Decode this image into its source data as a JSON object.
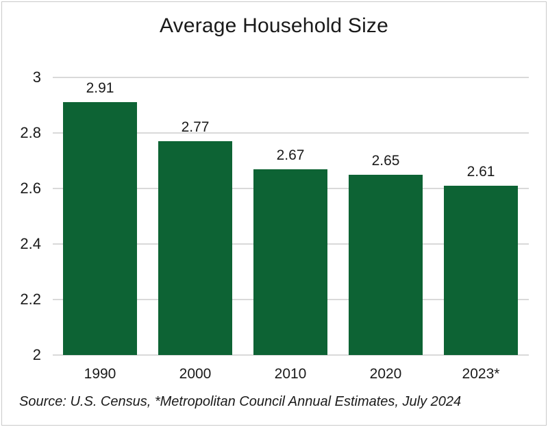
{
  "page": {
    "background_color": "#ffffff",
    "frame_border_color": "#c9c9c9"
  },
  "chart_data": {
    "type": "bar",
    "title": "Average Household Size",
    "categories": [
      "1990",
      "2000",
      "2010",
      "2020",
      "2023*"
    ],
    "values": [
      2.91,
      2.77,
      2.67,
      2.65,
      2.61
    ],
    "value_labels": [
      "2.91",
      "2.77",
      "2.67",
      "2.65",
      "2.61"
    ],
    "ylim": [
      2,
      3
    ],
    "yticks": [
      2,
      2.2,
      2.4,
      2.6,
      2.8,
      3
    ],
    "ytick_labels": [
      "2",
      "2.2",
      "2.4",
      "2.6",
      "2.8",
      "3"
    ],
    "grid": true,
    "legend_position": "none",
    "bar_color": "#0d6334",
    "gridline_color": "#d9d9d9",
    "label_color": "#1a1a1a",
    "source_note": "Source: U.S. Census, *Metropolitan Council Annual Estimates, July 2024"
  }
}
